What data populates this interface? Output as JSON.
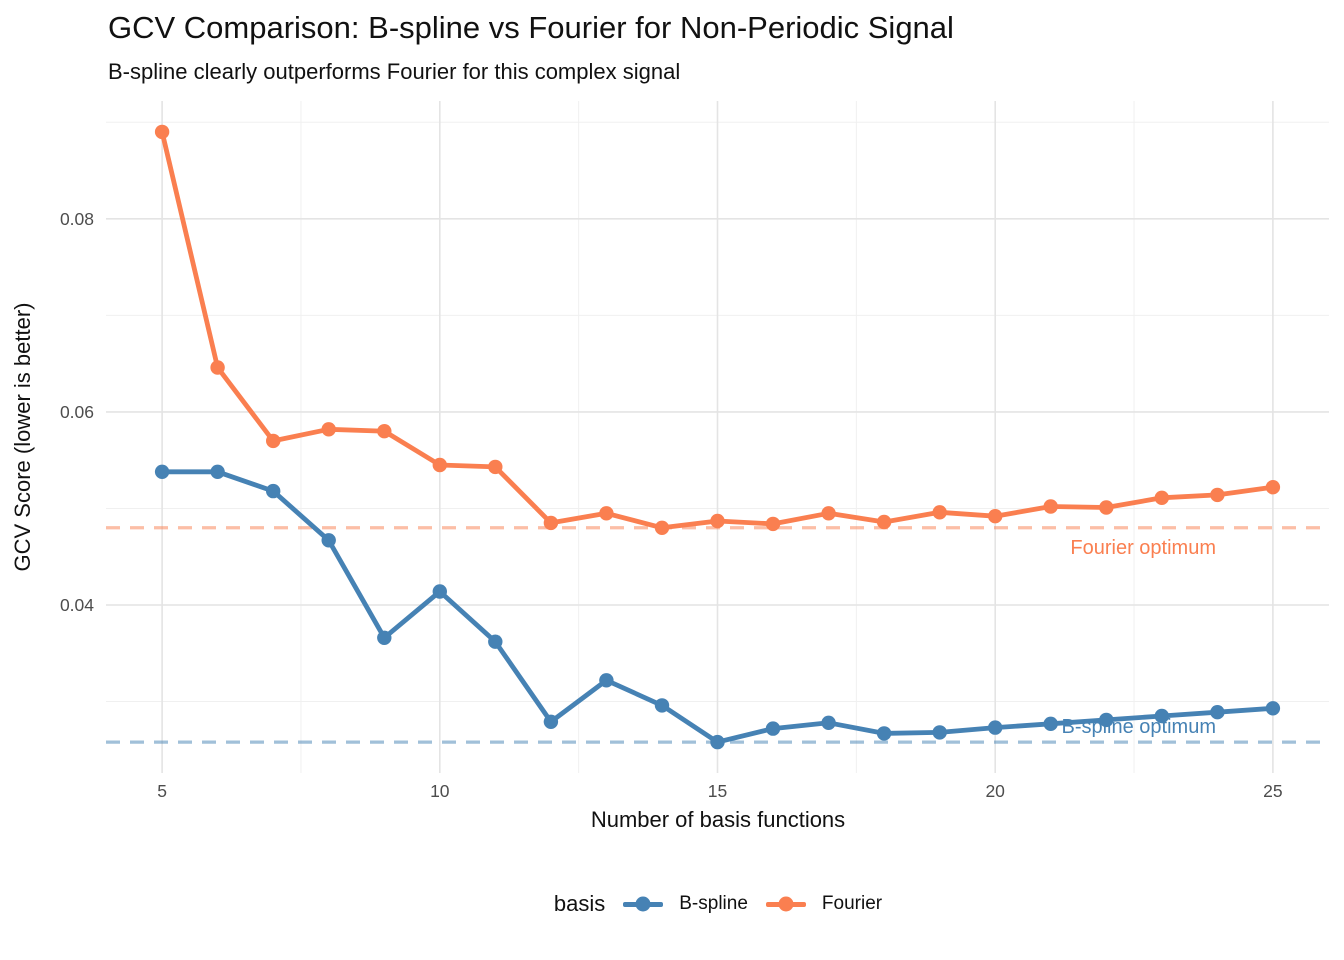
{
  "title": "GCV Comparison: B-spline vs Fourier for Non-Periodic Signal",
  "subtitle": "B-spline clearly outperforms Fourier for this complex signal",
  "chart_data": {
    "type": "line",
    "title": "GCV Comparison: B-spline vs Fourier for Non-Periodic Signal",
    "subtitle": "B-spline clearly outperforms Fourier for this complex signal",
    "xlabel": "Number of basis functions",
    "ylabel": "GCV Score (lower is better)",
    "x": [
      5,
      6,
      7,
      8,
      9,
      10,
      11,
      12,
      13,
      14,
      15,
      16,
      17,
      18,
      19,
      20,
      21,
      22,
      23,
      24,
      25
    ],
    "series": [
      {
        "name": "B-spline",
        "color": "#4682B4",
        "values": [
          0.0538,
          0.0538,
          0.0518,
          0.0467,
          0.0366,
          0.0414,
          0.0362,
          0.0279,
          0.0322,
          0.0296,
          0.0258,
          0.0272,
          0.0278,
          0.0267,
          0.0268,
          0.0273,
          0.0277,
          0.0281,
          0.0285,
          0.0289,
          0.0293
        ]
      },
      {
        "name": "Fourier",
        "color": "#FA7F50",
        "values": [
          0.089,
          0.0646,
          0.057,
          0.0582,
          0.058,
          0.0545,
          0.0543,
          0.0485,
          0.0495,
          0.048,
          0.0487,
          0.0484,
          0.0495,
          0.0486,
          0.0496,
          0.0492,
          0.0502,
          0.0501,
          0.0511,
          0.0514,
          0.0522
        ]
      }
    ],
    "reference_lines": [
      {
        "label": "Fourier optimum",
        "value": 0.048,
        "color": "#FA7F50",
        "label_side": "below"
      },
      {
        "label": "B-spline optimum",
        "value": 0.0258,
        "color": "#4682B4",
        "label_side": "above"
      }
    ],
    "x_ticks": [
      5,
      10,
      15,
      20,
      25
    ],
    "x_tick_labels": [
      "5",
      "10",
      "15",
      "20",
      "25"
    ],
    "y_ticks": [
      0.04,
      0.06,
      0.08
    ],
    "y_tick_labels": [
      "0.04",
      "0.06",
      "0.08"
    ],
    "x_minor": [
      7.5,
      12.5,
      17.5,
      22.5
    ],
    "y_minor": [
      0.03,
      0.05,
      0.07,
      0.09
    ],
    "xlim": [
      3.99,
      26.01
    ],
    "ylim": [
      0.0226,
      0.0922
    ],
    "grid": true,
    "legend": {
      "title": "basis",
      "position": "bottom",
      "entries": [
        "B-spline",
        "Fourier"
      ]
    }
  },
  "colors": {
    "grid_major": "#e4e4e4",
    "grid_minor": "#f0f0f0",
    "tick_text": "#4d4d4d",
    "text": "#111111"
  }
}
